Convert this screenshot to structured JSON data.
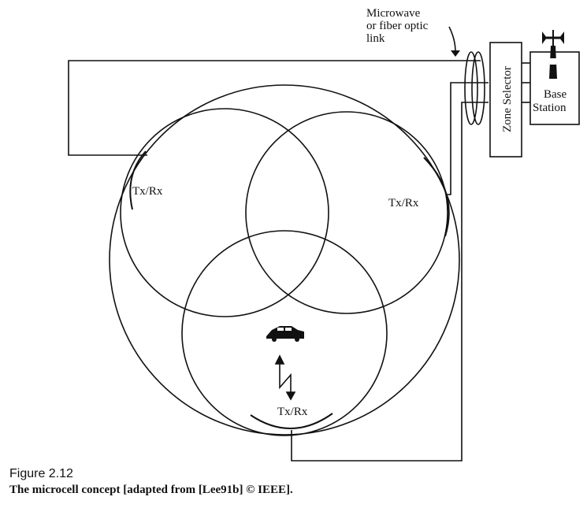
{
  "diagram": {
    "link_label_lines": [
      "Microwave",
      "or fiber optic",
      "link"
    ],
    "zone_selector_label": "Zone Selector",
    "base_station_label_lines": [
      "Base",
      "Station"
    ],
    "antenna_labels": {
      "left": "Tx/Rx",
      "right": "Tx/Rx",
      "bottom": "Tx/Rx"
    },
    "icons": [
      "car-icon",
      "radio-link-arrow-icon",
      "antenna-tower-icon"
    ]
  },
  "caption": {
    "label": "Figure 2.12",
    "text": "The microcell concept [adapted from [Lee91b] © IEEE]."
  }
}
